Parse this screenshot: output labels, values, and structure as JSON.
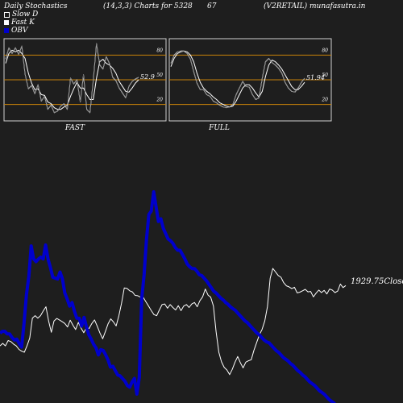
{
  "header": {
    "title": "Daily Stochastics",
    "params": "(14,3,3) Charts for 5328",
    "code": "67",
    "symbol": "(V2RETAIL) munafasutra.in"
  },
  "legend": {
    "slow_d": "Slow  D",
    "fast_k": "Fast K",
    "obv": "OBV"
  },
  "colors": {
    "background": "#1e1e1e",
    "panel_border": "#d0d0d0",
    "level_line": "#c8820a",
    "price_line": "#ffffff",
    "obv_line": "#0000cc"
  },
  "chart_data": [
    {
      "type": "line",
      "panel": "FAST",
      "label": "FAST",
      "ylim": [
        0,
        100
      ],
      "levels": [
        20,
        50,
        80
      ],
      "tick_labels": [
        "80",
        "50",
        "20"
      ],
      "last_value_label": "52.9",
      "series": [
        {
          "name": "Fast K",
          "values": [
            75,
            89,
            82,
            89,
            81,
            91,
            57,
            39,
            43,
            33,
            44,
            24,
            30,
            14,
            19,
            10,
            12,
            18,
            21,
            14,
            52,
            45,
            50,
            23,
            56,
            14,
            10,
            49,
            94,
            68,
            63,
            78,
            70,
            53,
            49,
            40,
            34,
            28,
            42,
            48,
            51,
            52.9
          ]
        },
        {
          "name": "Slow D",
          "values": [
            70,
            82,
            86,
            84,
            86,
            82,
            76,
            58,
            46,
            38,
            39,
            32,
            31,
            23,
            21,
            16,
            14,
            14,
            17,
            19,
            30,
            39,
            47,
            40,
            40,
            32,
            26,
            26,
            52,
            72,
            75,
            70,
            68,
            64,
            58,
            48,
            42,
            36,
            35,
            40,
            46,
            50
          ]
        }
      ]
    },
    {
      "type": "line",
      "panel": "FULL",
      "label": "FULL",
      "ylim": [
        0,
        100
      ],
      "levels": [
        20,
        50,
        80
      ],
      "tick_labels": [
        "80",
        "50",
        "20"
      ],
      "last_value_label": "51.94",
      "series": [
        {
          "name": "Fast K",
          "values": [
            70,
            80,
            84,
            85,
            85,
            82,
            75,
            60,
            46,
            38,
            38,
            32,
            30,
            24,
            22,
            19,
            17,
            16,
            17,
            20,
            32,
            40,
            48,
            42,
            41,
            32,
            26,
            28,
            52,
            72,
            76,
            71,
            68,
            64,
            58,
            47,
            40,
            36,
            35,
            40,
            47,
            51.94
          ]
        },
        {
          "name": "Slow D",
          "values": [
            66,
            76,
            82,
            84,
            85,
            84,
            80,
            72,
            58,
            47,
            40,
            36,
            33,
            29,
            26,
            22,
            20,
            18,
            17,
            18,
            24,
            32,
            40,
            44,
            44,
            40,
            34,
            29,
            36,
            54,
            68,
            74,
            72,
            68,
            63,
            56,
            49,
            42,
            38,
            38,
            42,
            47
          ]
        }
      ]
    },
    {
      "type": "line",
      "panel": "price",
      "close_label": "1929.75Close",
      "series": [
        {
          "name": "Close",
          "values": [
            1760,
            1767,
            1760,
            1775,
            1772,
            1765,
            1760,
            1750,
            1745,
            1742,
            1760,
            1782,
            1838,
            1845,
            1838,
            1845,
            1858,
            1870,
            1830,
            1798,
            1830,
            1837,
            1833,
            1828,
            1823,
            1813,
            1832,
            1818,
            1806,
            1826,
            1810,
            1797,
            1811,
            1809,
            1823,
            1833,
            1815,
            1796,
            1780,
            1800,
            1822,
            1836,
            1827,
            1816,
            1845,
            1880,
            1923,
            1922,
            1915,
            1912,
            1902,
            1901,
            1897,
            1897,
            1884,
            1872,
            1859,
            1848,
            1845,
            1861,
            1876,
            1878,
            1866,
            1876,
            1868,
            1861,
            1873,
            1859,
            1872,
            1876,
            1868,
            1878,
            1882,
            1870,
            1887,
            1898,
            1920,
            1903,
            1897,
            1872,
            1800,
            1742,
            1715,
            1699,
            1692,
            1679,
            1694,
            1714,
            1730,
            1712,
            1698,
            1714,
            1718,
            1721,
            1747,
            1769,
            1791,
            1806,
            1830,
            1870,
            1950,
            1978,
            1968,
            1958,
            1953,
            1938,
            1929,
            1926,
            1921,
            1925,
            1909,
            1911,
            1915,
            1919,
            1912,
            1913,
            1898,
            1908,
            1917,
            1910,
            1916,
            1906,
            1920,
            1917,
            1910,
            1914,
            1934,
            1924,
            1929.75
          ]
        }
      ]
    },
    {
      "type": "line",
      "panel": "obv",
      "series": [
        {
          "name": "OBV",
          "values": [
            -42,
            -40,
            -40,
            -43,
            -43,
            -47,
            -50,
            -49,
            -54,
            -58,
            -31,
            2,
            23,
            58,
            43,
            40,
            43,
            45,
            43,
            59,
            43,
            33,
            22,
            21,
            20,
            28,
            20,
            4,
            -3,
            -11,
            -7,
            -17,
            -25,
            -25,
            -34,
            -24,
            -35,
            -44,
            -49,
            -55,
            -59,
            -67,
            -61,
            -62,
            -67,
            -73,
            -81,
            -80,
            -85,
            -90,
            -91,
            -94,
            -97,
            -102,
            -104,
            -98,
            -94,
            -112,
            -93,
            -3,
            25,
            65,
            94,
            98,
            120,
            103,
            86,
            89,
            78,
            72,
            66,
            64,
            61,
            56,
            53,
            53,
            48,
            43,
            37,
            34,
            32,
            32,
            29,
            25,
            24,
            21,
            18,
            14,
            10,
            6,
            4,
            1,
            -2,
            -4,
            -7,
            -9,
            -12,
            -14,
            -16,
            -19,
            -22,
            -25,
            -28,
            -30,
            -33,
            -36,
            -39,
            -42,
            -44,
            -47,
            -50,
            -52,
            -53,
            -56,
            -59,
            -62,
            -64,
            -67,
            -70,
            -72,
            -74,
            -77,
            -79,
            -82,
            -85,
            -87,
            -90,
            -92,
            -95,
            -98,
            -100,
            -102,
            -105,
            -108,
            -110,
            -112,
            -115,
            -118,
            -120,
            -122,
            -125,
            -128,
            -130,
            -132,
            -135
          ]
        }
      ]
    }
  ]
}
